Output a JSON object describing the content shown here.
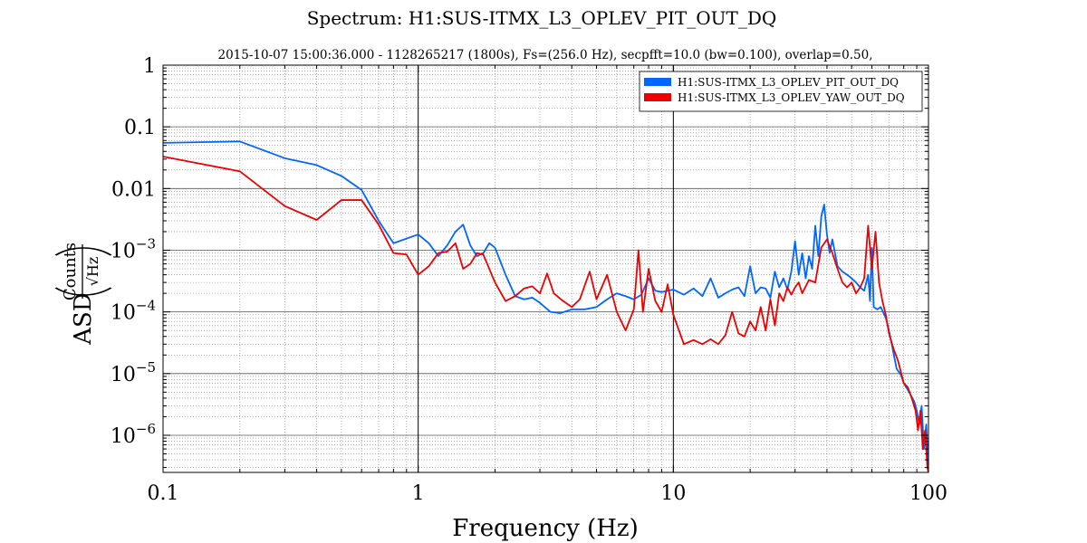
{
  "chart_data": {
    "type": "line",
    "title": "Spectrum: H1:SUS-ITMX_L3_OPLEV_PIT_OUT_DQ",
    "subtitle": "2015-10-07 15:00:36.000 - 1128265217 (1800s), Fs=(256.0 Hz), secpfft=10.0 (bw=0.100), overlap=0.50,",
    "xlabel": "Frequency (Hz)",
    "ylabel_prefix": "ASD",
    "ylabel_unit_numerator": "Counts",
    "ylabel_unit_denominator": "√Hz",
    "x_scale": "log",
    "y_scale": "log",
    "xlim": [
      0.1,
      100
    ],
    "ylim": [
      2.5e-07,
      1
    ],
    "grid": true,
    "legend_position": "top-right",
    "x_ticks": [
      {
        "value": 0.1,
        "label": "0.1"
      },
      {
        "value": 1,
        "label": "1"
      },
      {
        "value": 10,
        "label": "10"
      },
      {
        "value": 100,
        "label": "100"
      }
    ],
    "y_ticks": [
      {
        "value": 1,
        "mantissa": "1",
        "exponent": ""
      },
      {
        "value": 0.1,
        "mantissa": "0.1",
        "exponent": ""
      },
      {
        "value": 0.01,
        "mantissa": "0.01",
        "exponent": ""
      },
      {
        "value": 0.001,
        "mantissa": "10",
        "exponent": "−3"
      },
      {
        "value": 0.0001,
        "mantissa": "10",
        "exponent": "−4"
      },
      {
        "value": 1e-05,
        "mantissa": "10",
        "exponent": "−5"
      },
      {
        "value": 1e-06,
        "mantissa": "10",
        "exponent": "−6"
      }
    ],
    "series": [
      {
        "name": "H1:SUS-ITMX_L3_OPLEV_PIT_OUT_DQ",
        "color": "#0066ff",
        "points": [
          [
            0.1,
            0.055
          ],
          [
            0.2,
            0.058
          ],
          [
            0.3,
            0.031
          ],
          [
            0.4,
            0.024
          ],
          [
            0.5,
            0.016
          ],
          [
            0.6,
            0.0095
          ],
          [
            0.7,
            0.003
          ],
          [
            0.8,
            0.0013
          ],
          [
            1.0,
            0.0018
          ],
          [
            1.1,
            0.0013
          ],
          [
            1.2,
            0.0008
          ],
          [
            1.3,
            0.0012
          ],
          [
            1.4,
            0.002
          ],
          [
            1.5,
            0.0026
          ],
          [
            1.6,
            0.0012
          ],
          [
            1.7,
            0.0008
          ],
          [
            1.8,
            0.0009
          ],
          [
            1.9,
            0.0013
          ],
          [
            2.0,
            0.0011
          ],
          [
            2.2,
            0.0004
          ],
          [
            2.4,
            0.00018
          ],
          [
            2.6,
            0.00016
          ],
          [
            2.8,
            0.00017
          ],
          [
            3.0,
            0.00014
          ],
          [
            3.3,
            0.0001
          ],
          [
            3.6,
            9.5e-05
          ],
          [
            4.0,
            0.00011
          ],
          [
            4.5,
            0.00011
          ],
          [
            5.0,
            0.00012
          ],
          [
            5.5,
            0.00016
          ],
          [
            6.0,
            0.0002
          ],
          [
            6.5,
            0.00018
          ],
          [
            7.0,
            0.00016
          ],
          [
            7.5,
            0.00019
          ],
          [
            8.0,
            0.00035
          ],
          [
            8.5,
            0.00022
          ],
          [
            9.0,
            0.00021
          ],
          [
            10,
            0.00023
          ],
          [
            11,
            0.00019
          ],
          [
            12,
            0.00024
          ],
          [
            13,
            0.00018
          ],
          [
            14,
            0.00035
          ],
          [
            15,
            0.00017
          ],
          [
            16,
            0.0002
          ],
          [
            17,
            0.00023
          ],
          [
            18,
            0.00025
          ],
          [
            19,
            0.00018
          ],
          [
            20,
            0.00055
          ],
          [
            21,
            0.0002
          ],
          [
            22,
            0.00025
          ],
          [
            23,
            0.00024
          ],
          [
            24,
            0.00017
          ],
          [
            25,
            0.00045
          ],
          [
            26,
            0.00025
          ],
          [
            27,
            0.00035
          ],
          [
            28,
            0.00023
          ],
          [
            29,
            0.00045
          ],
          [
            30,
            0.0014
          ],
          [
            31,
            0.0004
          ],
          [
            32,
            0.0009
          ],
          [
            33,
            0.00035
          ],
          [
            34,
            0.0008
          ],
          [
            35,
            0.0005
          ],
          [
            36,
            0.0025
          ],
          [
            37,
            0.0008
          ],
          [
            38,
            0.0035
          ],
          [
            39,
            0.0055
          ],
          [
            40,
            0.0018
          ],
          [
            41,
            0.0009
          ],
          [
            42,
            0.0015
          ],
          [
            44,
            0.00055
          ],
          [
            46,
            0.00045
          ],
          [
            48,
            0.0004
          ],
          [
            50,
            0.00035
          ],
          [
            52,
            0.0003
          ],
          [
            54,
            0.00025
          ],
          [
            56,
            0.00022
          ],
          [
            58,
            0.0004
          ],
          [
            59,
            0.00015
          ],
          [
            60,
            0.0011
          ],
          [
            61,
            0.00012
          ],
          [
            63,
            0.00011
          ],
          [
            65,
            0.00012
          ],
          [
            68,
            8e-05
          ],
          [
            70,
            5e-05
          ],
          [
            72,
            2.8e-05
          ],
          [
            75,
            1.2e-05
          ],
          [
            78,
            9.5e-06
          ],
          [
            80,
            7e-06
          ],
          [
            84,
            5e-06
          ],
          [
            88,
            3.5e-06
          ],
          [
            90,
            2.5e-06
          ],
          [
            92,
            1.5e-06
          ],
          [
            94,
            3e-06
          ],
          [
            96,
            6e-07
          ],
          [
            98,
            1.5e-06
          ],
          [
            100,
            3e-07
          ]
        ]
      },
      {
        "name": "H1:SUS-ITMX_L3_OPLEV_YAW_OUT_DQ",
        "color": "#ee0000",
        "points": [
          [
            0.1,
            0.033
          ],
          [
            0.2,
            0.019
          ],
          [
            0.3,
            0.0052
          ],
          [
            0.4,
            0.0031
          ],
          [
            0.5,
            0.0065
          ],
          [
            0.6,
            0.0065
          ],
          [
            0.7,
            0.0026
          ],
          [
            0.8,
            0.0009
          ],
          [
            0.9,
            0.00085
          ],
          [
            1.0,
            0.0004
          ],
          [
            1.1,
            0.00055
          ],
          [
            1.2,
            0.0009
          ],
          [
            1.3,
            0.00095
          ],
          [
            1.4,
            0.0013
          ],
          [
            1.5,
            0.0005
          ],
          [
            1.6,
            0.0006
          ],
          [
            1.7,
            0.0009
          ],
          [
            1.8,
            0.00085
          ],
          [
            2.0,
            0.0003
          ],
          [
            2.2,
            0.00015
          ],
          [
            2.4,
            0.00018
          ],
          [
            2.6,
            0.00024
          ],
          [
            2.8,
            0.00026
          ],
          [
            3.0,
            0.0002
          ],
          [
            3.2,
            0.00042
          ],
          [
            3.4,
            0.0002
          ],
          [
            3.7,
            0.00015
          ],
          [
            4.0,
            0.00012
          ],
          [
            4.3,
            0.00016
          ],
          [
            4.7,
            0.00045
          ],
          [
            5.0,
            0.00016
          ],
          [
            5.5,
            0.0004
          ],
          [
            6.0,
            0.0001
          ],
          [
            6.5,
            5e-05
          ],
          [
            7.0,
            0.00011
          ],
          [
            7.3,
            0.001
          ],
          [
            7.6,
            0.0001
          ],
          [
            8.0,
            0.0005
          ],
          [
            8.5,
            0.00015
          ],
          [
            9.0,
            0.0001
          ],
          [
            9.5,
            0.00028
          ],
          [
            10,
            9e-05
          ],
          [
            11,
            3e-05
          ],
          [
            12,
            3.5e-05
          ],
          [
            13,
            3e-05
          ],
          [
            14,
            3.6e-05
          ],
          [
            15,
            3e-05
          ],
          [
            16,
            4.2e-05
          ],
          [
            17,
            0.0001
          ],
          [
            18,
            4.5e-05
          ],
          [
            19,
            4e-05
          ],
          [
            20,
            7e-05
          ],
          [
            21,
            5e-05
          ],
          [
            22,
            0.00012
          ],
          [
            23,
            5e-05
          ],
          [
            24,
            0.00016
          ],
          [
            25,
            6e-05
          ],
          [
            26,
            0.0002
          ],
          [
            27,
            0.00015
          ],
          [
            28,
            0.00025
          ],
          [
            29,
            0.00019
          ],
          [
            30,
            0.00025
          ],
          [
            31,
            0.0003
          ],
          [
            32,
            0.0002
          ],
          [
            34,
            0.00033
          ],
          [
            36,
            0.0003
          ],
          [
            38,
            0.0011
          ],
          [
            40,
            0.0015
          ],
          [
            42,
            0.0009
          ],
          [
            44,
            0.0005
          ],
          [
            46,
            0.0003
          ],
          [
            48,
            0.00025
          ],
          [
            50,
            0.0003
          ],
          [
            52,
            0.0002
          ],
          [
            54,
            0.00025
          ],
          [
            56,
            0.00035
          ],
          [
            58,
            0.0025
          ],
          [
            60,
            0.0005
          ],
          [
            62,
            0.002
          ],
          [
            64,
            0.0003
          ],
          [
            66,
            0.00015
          ],
          [
            68,
            9e-05
          ],
          [
            70,
            4.5e-05
          ],
          [
            73,
            2.5e-05
          ],
          [
            76,
            1.6e-05
          ],
          [
            80,
            7e-06
          ],
          [
            83,
            6e-06
          ],
          [
            86,
            4e-06
          ],
          [
            89,
            2.5e-06
          ],
          [
            91,
            1.2e-06
          ],
          [
            93,
            2.5e-06
          ],
          [
            95,
            6e-07
          ],
          [
            97,
            1.2e-06
          ],
          [
            99,
            3e-07
          ],
          [
            100,
            2.5e-07
          ]
        ]
      }
    ]
  }
}
